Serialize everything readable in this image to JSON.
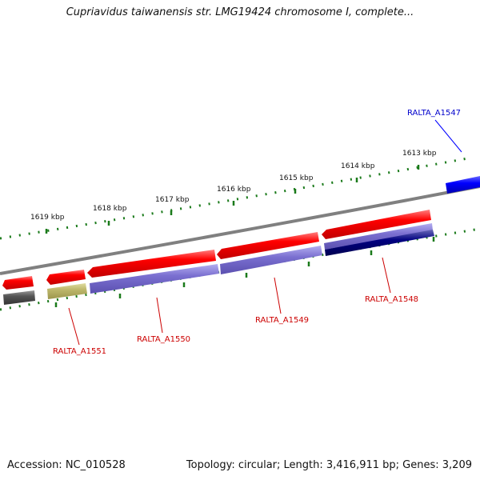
{
  "header": {
    "title": "Cupriavidus taiwanensis str. LMG19424 chromosome I, complete..."
  },
  "footer": {
    "accession": "Accession: NC_010528",
    "summary": "Topology: circular; Length: 3,416,911 bp; Genes: 3,209"
  },
  "scale": {
    "ticks": [
      "1619 kbp",
      "1618 kbp",
      "1617 kbp",
      "1616 kbp",
      "1615 kbp",
      "1614 kbp",
      "1613 kbp"
    ]
  },
  "genes": [
    {
      "name": "RALTA_A1547",
      "label_color": "#0000cc",
      "feature_color": "#0000ff"
    },
    {
      "name": "RALTA_A1548",
      "label_color": "#cc0000",
      "feature_color": "#7a6fd0"
    },
    {
      "name": "RALTA_A1549",
      "label_color": "#cc0000",
      "feature_color": "#7a6fd0"
    },
    {
      "name": "RALTA_A1550",
      "label_color": "#cc0000",
      "feature_color": "#7a6fd0"
    },
    {
      "name": "RALTA_A1551",
      "label_color": "#cc0000",
      "feature_color": "#bdb76b"
    }
  ],
  "colors": {
    "cds": "#ff0000",
    "backbone": "#808080",
    "tick": "#1a7a1a",
    "dark_feature": "#000080",
    "gray_feature": "#555555"
  }
}
